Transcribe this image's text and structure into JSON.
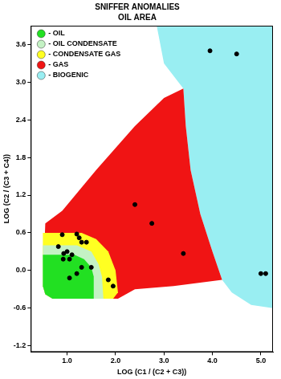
{
  "chart_data": {
    "type": "scatter",
    "title": "SNIFFER ANOMALIES",
    "subtitle": "OIL AREA",
    "x_label": "LOG (C1 / (C2 + C3))",
    "y_label": "LOG (C2 / (C3 + C4))",
    "xlim": [
      0.25,
      5.25
    ],
    "ylim": [
      -1.3,
      3.9
    ],
    "xticks": [
      {
        "value": 1,
        "label": "1.0"
      },
      {
        "value": 2,
        "label": "2.0"
      },
      {
        "value": 3,
        "label": "3.0"
      },
      {
        "value": 4,
        "label": "4.0"
      },
      {
        "value": 5,
        "label": "5.0"
      }
    ],
    "yticks": [
      -1.2,
      -0.6,
      {
        "value": 0,
        "label": "0.0"
      },
      0.6,
      1.2,
      1.8,
      2.4,
      {
        "value": 3,
        "label": "3.0"
      },
      3.6
    ],
    "grid": false,
    "legend": "upper left",
    "series": [
      {
        "name": "- OIL",
        "type": "area",
        "color": "#22e022",
        "x": [
          0.5,
          1.15,
          1.35,
          1.5,
          1.55,
          1.55,
          0.7,
          0.55,
          0.5
        ],
        "y": [
          0.25,
          0.25,
          0.18,
          0.05,
          -0.1,
          -0.45,
          -0.45,
          -0.38,
          -0.25
        ]
      },
      {
        "name": "- OIL CONDENSATE",
        "type": "area",
        "color": "#c4f2c4",
        "x": [
          0.5,
          1.2,
          1.5,
          1.65,
          1.72,
          1.75,
          0.7,
          0.55,
          0.5
        ],
        "y": [
          0.4,
          0.4,
          0.3,
          0.1,
          -0.1,
          -0.45,
          -0.45,
          -0.38,
          -0.25
        ]
      },
      {
        "name": "- CONDENSATE GAS",
        "type": "area",
        "color": "#ffff22",
        "x": [
          0.5,
          1.3,
          1.6,
          1.85,
          2.0,
          2.05,
          1.95,
          0.7,
          0.55,
          0.5
        ],
        "y": [
          0.6,
          0.6,
          0.5,
          0.3,
          0.0,
          -0.35,
          -0.45,
          -0.45,
          -0.38,
          -0.25
        ]
      },
      {
        "name": "- GAS",
        "type": "area",
        "color": "#f01414",
        "x": [
          0.55,
          0.9,
          1.6,
          2.4,
          3.0,
          3.4,
          3.45,
          3.55,
          3.75,
          4.0,
          4.2,
          3.2,
          2.4,
          2.05,
          0.7,
          0.55,
          0.5
        ],
        "y": [
          0.75,
          0.95,
          1.6,
          2.3,
          2.75,
          2.9,
          2.3,
          1.6,
          0.9,
          0.3,
          -0.15,
          -0.25,
          -0.3,
          -0.45,
          -0.45,
          -0.38,
          -0.25
        ]
      },
      {
        "name": "- BIOGENIC",
        "type": "area",
        "color": "#99eef2",
        "x": [
          2.85,
          5.25,
          5.25,
          4.8,
          4.4,
          4.2,
          4.0,
          3.75,
          3.55,
          3.45,
          3.4,
          3.0
        ],
        "y": [
          3.9,
          3.9,
          -0.6,
          -0.55,
          -0.35,
          -0.15,
          0.3,
          0.9,
          1.6,
          2.3,
          2.9,
          3.3
        ]
      },
      {
        "type": "scatter",
        "color": "#000000",
        "marker": "circle",
        "x": [
          0.9,
          0.82,
          0.93,
          0.92,
          1.0,
          1.05,
          1.1,
          1.2,
          1.25,
          1.3,
          1.4,
          1.05,
          1.2,
          1.3,
          1.5,
          1.85,
          1.95,
          2.4,
          2.75,
          3.4,
          3.95,
          4.5,
          5.0,
          5.1
        ],
        "y": [
          0.57,
          0.38,
          0.27,
          0.18,
          0.3,
          0.18,
          0.25,
          0.58,
          0.52,
          0.45,
          0.45,
          -0.12,
          -0.05,
          0.05,
          0.05,
          -0.15,
          -0.25,
          1.05,
          0.75,
          0.27,
          3.5,
          3.45,
          -0.05,
          -0.05
        ]
      }
    ]
  }
}
